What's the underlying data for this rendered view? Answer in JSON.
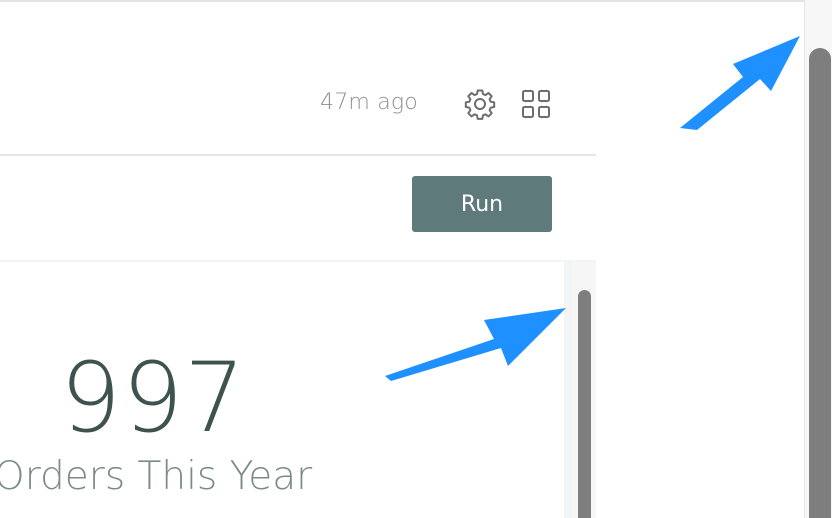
{
  "header": {
    "timestamp": "47m ago",
    "settings_icon": "gear-icon",
    "layout_icon": "grid-icon"
  },
  "toolbar": {
    "run_label": "Run"
  },
  "metric": {
    "value": "997",
    "label": "Orders This Year"
  },
  "annotations": {
    "arrow_color": "#1e90ff"
  },
  "colors": {
    "run_button_bg": "#5e7a7a",
    "metric_value": "#3e534f",
    "metric_label": "#7b8b87",
    "scrollbar": "#7e7e7e"
  }
}
